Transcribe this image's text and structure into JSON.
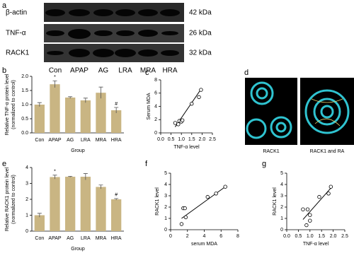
{
  "panel_labels": {
    "a": "a",
    "d": "d"
  },
  "blot": {
    "proteins": [
      "β-actin",
      "TNF-α",
      "RACK1"
    ],
    "sizes": [
      "42 kDa",
      "26 kDa",
      "32 kDa"
    ],
    "lanes": [
      "Con",
      "APAP",
      "AG",
      "LRA",
      "MRA",
      "HRA"
    ]
  },
  "structure": {
    "labels": [
      "RACK1",
      "RACK1 and RA"
    ]
  },
  "chart_data": [
    {
      "type": "bar",
      "panel": "b",
      "ylabel": [
        "Relative TNF-α protein level",
        "(normalized to control)"
      ],
      "xlabel": "Group",
      "categories": [
        "Con",
        "APAP",
        "AG",
        "LRA",
        "MRA",
        "HRA"
      ],
      "values": [
        1.0,
        1.72,
        1.25,
        1.15,
        1.42,
        0.8
      ],
      "errors": [
        0.07,
        0.12,
        0.03,
        0.08,
        0.2,
        0.1
      ],
      "annotations": {
        "APAP": "*",
        "HRA": "#"
      },
      "color": "#c9b583",
      "ylim": [
        0,
        2
      ],
      "yticks": [
        {
          "value": 0,
          "label": "0.0"
        },
        {
          "value": 0.5,
          "label": "0.5"
        },
        {
          "value": 1,
          "label": "1.0"
        },
        {
          "value": 1.5,
          "label": "1.5"
        },
        {
          "value": 2,
          "label": "2.0"
        }
      ]
    },
    {
      "type": "scatter",
      "panel": "c",
      "ylabel": [
        "Serum MDA"
      ],
      "xlabel": "TNF-α  level",
      "x": [
        0.7,
        0.85,
        0.9,
        1.0,
        1.05,
        1.5,
        1.85,
        1.95
      ],
      "y": [
        1.5,
        1.3,
        1.8,
        1.7,
        1.9,
        4.4,
        5.4,
        6.5
      ],
      "fit_x": [
        0.7,
        1.95
      ],
      "fit_y": [
        0.9,
        6.6
      ],
      "xlim": [
        0,
        2.5
      ],
      "xticks": [
        {
          "value": 0,
          "label": "0.0"
        },
        {
          "value": 0.5,
          "label": "0.5"
        },
        {
          "value": 1,
          "label": "1.0"
        },
        {
          "value": 1.5,
          "label": "1.5"
        },
        {
          "value": 2,
          "label": "2.0"
        },
        {
          "value": 2.5,
          "label": "2.5"
        }
      ],
      "ylim": [
        0,
        8
      ],
      "yticks": [
        0,
        2,
        4,
        6,
        8
      ]
    },
    {
      "type": "bar",
      "panel": "e",
      "ylabel": [
        "Relative RACK1 protein level",
        "(normalized to control)"
      ],
      "xlabel": "Group",
      "categories": [
        "Con",
        "APAP",
        "AG",
        "LRA",
        "MRA",
        "HRA"
      ],
      "values": [
        1.0,
        3.4,
        3.42,
        3.42,
        2.78,
        2.0
      ],
      "errors": [
        0.12,
        0.12,
        0.03,
        0.2,
        0.12,
        0.05
      ],
      "annotations": {
        "APAP": "*",
        "HRA": "#"
      },
      "color": "#c9b583",
      "ylim": [
        0,
        4
      ],
      "yticks": [
        0,
        1,
        2,
        3,
        4
      ]
    },
    {
      "type": "scatter",
      "panel": "f",
      "ylabel": [
        "RACK1 level"
      ],
      "xlabel": "serum MDA",
      "x": [
        1.3,
        1.5,
        1.7,
        1.8,
        4.4,
        5.4,
        6.5
      ],
      "y": [
        0.5,
        1.9,
        1.9,
        1.1,
        2.9,
        3.2,
        3.8
      ],
      "fit_x": [
        1.3,
        6.6
      ],
      "fit_y": [
        1.0,
        3.85
      ],
      "xlim": [
        0,
        8
      ],
      "xticks": [
        0,
        2,
        4,
        6,
        8
      ],
      "ylim": [
        0,
        5
      ],
      "yticks": [
        0,
        1,
        2,
        3,
        4,
        5
      ]
    },
    {
      "type": "scatter",
      "panel": "g",
      "ylabel": [
        "RACK1 level"
      ],
      "xlabel": "TNF-α level",
      "x": [
        0.7,
        0.85,
        0.9,
        1.0,
        1.0,
        1.4,
        1.8,
        1.9
      ],
      "y": [
        1.8,
        0.4,
        1.8,
        1.3,
        0.8,
        2.9,
        3.2,
        3.8
      ],
      "fit_x": [
        0.7,
        1.95
      ],
      "fit_y": [
        0.9,
        3.8
      ],
      "xlim": [
        0,
        2.5
      ],
      "xticks": [
        {
          "value": 0,
          "label": "0.0"
        },
        {
          "value": 0.5,
          "label": "0.5"
        },
        {
          "value": 1,
          "label": "1.0"
        },
        {
          "value": 1.5,
          "label": "1.5"
        },
        {
          "value": 2,
          "label": "2.0"
        },
        {
          "value": 2.5,
          "label": "2.5"
        }
      ],
      "ylim": [
        0,
        5
      ],
      "yticks": [
        0,
        1,
        2,
        3,
        4,
        5
      ]
    }
  ]
}
